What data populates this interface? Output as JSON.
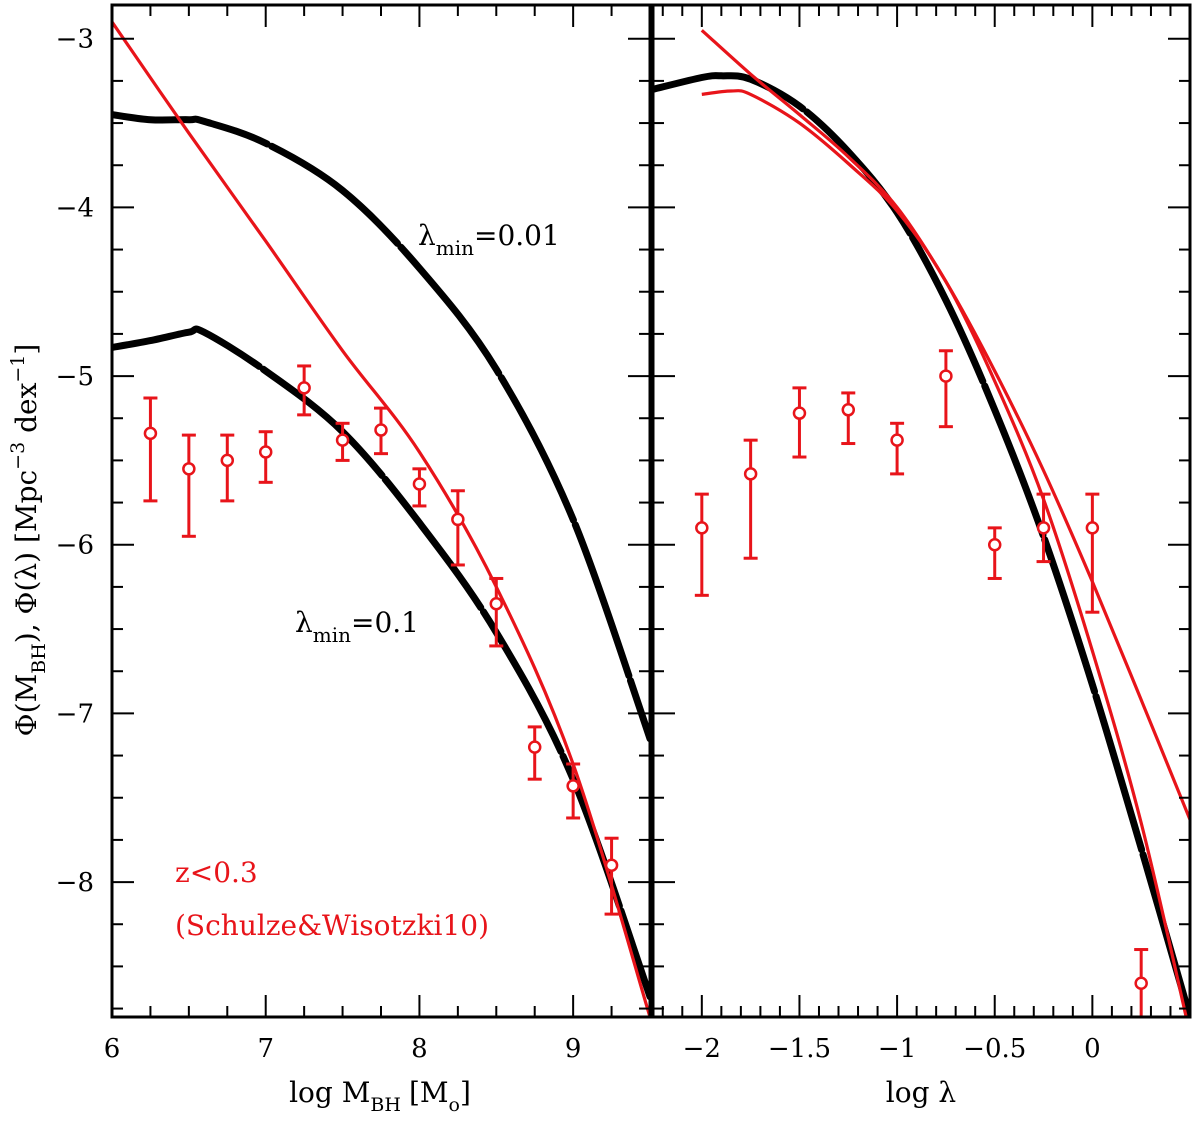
{
  "colors": {
    "model": "#000000",
    "fit": "#e8141a",
    "data": "#e8141a"
  },
  "chart_data": [
    {
      "type": "line",
      "panel": "left",
      "xlabel": {
        "main": "log M",
        "sub": "BH",
        "unit_open": "[M",
        "unit_sub": "o",
        "unit_close": "]"
      },
      "ylabel": {
        "part1": "Φ(M",
        "sub": "BH",
        "part2": "),  Φ(λ)  [Mpc",
        "sup1": "−3",
        "part3": " dex",
        "sup2": "−1",
        "part4": "]"
      },
      "xlim": [
        6,
        9.5
      ],
      "ylim": [
        -8.8,
        -2.8
      ],
      "xticks": [
        6,
        7,
        8,
        9
      ],
      "xticklabels": [
        "6",
        "7",
        "8",
        "9"
      ],
      "yticks": [
        -3,
        -4,
        -5,
        -6,
        -7,
        -8
      ],
      "yticklabels": [
        "−3",
        "−4",
        "−5",
        "−6",
        "−7",
        "−8"
      ],
      "annotations": [
        {
          "prefix": "λ",
          "sub": "min",
          "suffix": "=0.01"
        },
        {
          "prefix": "λ",
          "sub": "min",
          "suffix": "=0.1"
        }
      ],
      "legend_text": [
        "z<0.3",
        "(Schulze&Wisotzki10)"
      ],
      "series": [
        {
          "name": "model λmin=0.01",
          "style": "thick-black",
          "x": [
            6.0,
            6.25,
            6.5,
            6.6,
            7.0,
            7.5,
            8.0,
            8.5,
            9.0,
            9.5
          ],
          "y": [
            -3.45,
            -3.48,
            -3.48,
            -3.49,
            -3.62,
            -3.9,
            -4.36,
            -4.96,
            -5.85,
            -7.15
          ]
        },
        {
          "name": "model λmin=0.1",
          "style": "thick-black",
          "x": [
            6.0,
            6.25,
            6.5,
            6.6,
            7.0,
            7.5,
            8.0,
            8.5,
            9.0,
            9.5
          ],
          "y": [
            -4.83,
            -4.79,
            -4.74,
            -4.74,
            -4.97,
            -5.33,
            -5.87,
            -6.52,
            -7.39,
            -8.68
          ]
        },
        {
          "name": "fit",
          "style": "thin-red",
          "x": [
            6.0,
            6.5,
            7.0,
            7.5,
            8.0,
            8.5,
            9.0,
            9.5
          ],
          "y": [
            -2.9,
            -3.56,
            -4.2,
            -4.85,
            -5.45,
            -6.25,
            -7.3,
            -8.8
          ]
        },
        {
          "name": "Schulze & Wisotzki 2010 (z<0.3)",
          "style": "points-errorbars",
          "x": [
            6.25,
            6.5,
            6.75,
            7.0,
            7.25,
            7.5,
            7.75,
            8.0,
            8.25,
            8.5,
            8.75,
            9.0,
            9.25
          ],
          "y": [
            -5.34,
            -5.55,
            -5.5,
            -5.45,
            -5.07,
            -5.38,
            -5.32,
            -5.64,
            -5.85,
            -6.35,
            -7.2,
            -7.43,
            -7.9
          ],
          "yerr_low": [
            0.4,
            0.4,
            0.24,
            0.18,
            0.16,
            0.12,
            0.14,
            0.13,
            0.27,
            0.25,
            0.19,
            0.19,
            0.29
          ],
          "yerr_high": [
            0.21,
            0.2,
            0.15,
            0.12,
            0.13,
            0.1,
            0.13,
            0.09,
            0.17,
            0.15,
            0.12,
            0.13,
            0.16
          ]
        }
      ]
    },
    {
      "type": "line",
      "panel": "right",
      "xlabel": {
        "main": "log λ"
      },
      "xlim": [
        -2.25,
        0.5
      ],
      "ylim": [
        -8.8,
        -2.8
      ],
      "xticks": [
        -2,
        -1.5,
        -1,
        -0.5,
        0
      ],
      "xticklabels": [
        "−2",
        "−1.5",
        "−1",
        "−0.5",
        "0"
      ],
      "yticks": [
        -3,
        -4,
        -5,
        -6,
        -7,
        -8
      ],
      "series": [
        {
          "name": "model",
          "style": "thick-black",
          "x": [
            -2.25,
            -2.0,
            -1.9,
            -1.75,
            -1.5,
            -1.25,
            -1.0,
            -0.75,
            -0.5,
            -0.25,
            0.0,
            0.25,
            0.5
          ],
          "y": [
            -3.3,
            -3.23,
            -3.22,
            -3.24,
            -3.4,
            -3.67,
            -4.03,
            -4.55,
            -5.2,
            -5.95,
            -6.83,
            -7.8,
            -8.8
          ]
        },
        {
          "name": "fit 1",
          "style": "thin-red",
          "x": [
            -2.0,
            -1.75,
            -1.5,
            -1.25,
            -1.0,
            -0.75,
            -0.5,
            -0.25,
            0.0,
            0.25,
            0.5
          ],
          "y": [
            -2.95,
            -3.21,
            -3.45,
            -3.7,
            -4.0,
            -4.44,
            -4.97,
            -5.56,
            -6.22,
            -6.92,
            -7.63
          ]
        },
        {
          "name": "fit 2",
          "style": "thin-red",
          "x": [
            -2.0,
            -1.85,
            -1.75,
            -1.5,
            -1.25,
            -1.0,
            -0.75,
            -0.5,
            -0.25,
            0.0,
            0.25,
            0.5
          ],
          "y": [
            -3.33,
            -3.31,
            -3.33,
            -3.5,
            -3.74,
            -4.02,
            -4.44,
            -5.03,
            -5.73,
            -6.63,
            -7.65,
            -8.9
          ]
        },
        {
          "name": "data",
          "style": "points-errorbars",
          "x": [
            -2.0,
            -1.75,
            -1.5,
            -1.25,
            -1.0,
            -0.75,
            -0.5,
            -0.25,
            0.0,
            0.25
          ],
          "y": [
            -5.9,
            -5.58,
            -5.22,
            -5.2,
            -5.38,
            -5.0,
            -6.0,
            -5.9,
            -5.9,
            -8.6
          ],
          "yerr_low": [
            0.4,
            0.5,
            0.26,
            0.2,
            0.2,
            0.3,
            0.2,
            0.2,
            0.5,
            0.25
          ],
          "yerr_high": [
            0.2,
            0.2,
            0.15,
            0.1,
            0.1,
            0.15,
            0.1,
            0.2,
            0.2,
            0.2
          ]
        }
      ]
    }
  ]
}
